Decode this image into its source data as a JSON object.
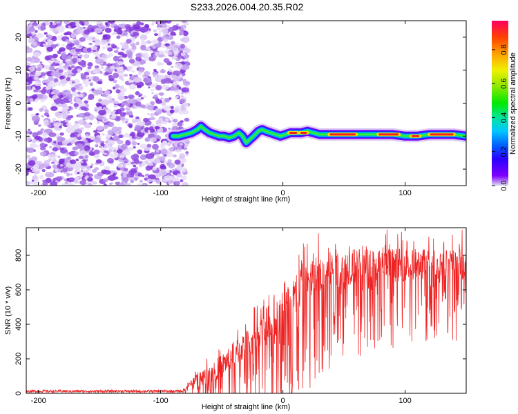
{
  "title": "S233.2026.004.20.35.R02",
  "colors": {
    "scatter": "#8a2be2",
    "snr_line": "#ee2222",
    "axis": "#000000",
    "colorbar": [
      "#dcdcf0",
      "#7f00ff",
      "#2a00ff",
      "#0066ff",
      "#00c8ff",
      "#00e5a0",
      "#00e800",
      "#8ce800",
      "#f0f000",
      "#ffa000",
      "#ff4000",
      "#ff0060",
      "#ff007f"
    ]
  },
  "chart_data": [
    {
      "type": "heatmap",
      "name": "spectrogram",
      "xlabel": "Height of straight line (km)",
      "ylabel": "Frequency (Hz)",
      "xlim": [
        -210,
        150
      ],
      "ylim": [
        -25,
        25
      ],
      "xticks": [
        -200,
        -100,
        0,
        100
      ],
      "yticks": [
        -20,
        -10,
        0,
        10,
        20
      ],
      "noise_region": {
        "x_range": [
          -210,
          -82
        ],
        "y_range": [
          -25,
          25
        ]
      },
      "track": {
        "x": [
          -90,
          -85,
          -80,
          -75,
          -70,
          -67,
          -64,
          -60,
          -56,
          -52,
          -48,
          -44,
          -40,
          -36,
          -33,
          -30,
          -27,
          -24,
          -20,
          -17,
          -14,
          -10,
          -6,
          -2,
          2,
          6,
          10,
          15,
          20,
          25,
          30,
          40,
          50,
          60,
          70,
          80,
          90,
          100,
          110,
          120,
          130,
          140,
          150
        ],
        "y": [
          -10,
          -10,
          -9.5,
          -9,
          -8,
          -7,
          -8,
          -9,
          -9.5,
          -10,
          -10,
          -10.5,
          -10,
          -9,
          -10,
          -12,
          -11,
          -10,
          -8.5,
          -8,
          -8.5,
          -9,
          -9.5,
          -10,
          -9.5,
          -9,
          -9,
          -9,
          -8.5,
          -9,
          -9.5,
          -9.5,
          -9.5,
          -9.5,
          -9.5,
          -9.5,
          -9.5,
          -10,
          -10,
          -9.5,
          -9.5,
          -9.5,
          -10
        ]
      },
      "hot_spots": [
        {
          "x_range": [
            5,
            12
          ],
          "y": -9
        },
        {
          "x_range": [
            14,
            20
          ],
          "y": -9
        },
        {
          "x_range": [
            38,
            60
          ],
          "y": -9.5
        },
        {
          "x_range": [
            78,
            95
          ],
          "y": -9.5
        },
        {
          "x_range": [
            105,
            112
          ],
          "y": -10
        },
        {
          "x_range": [
            120,
            140
          ],
          "y": -9.5
        }
      ],
      "colorbar": {
        "label": "Normalized spectral amplitude",
        "range": [
          0,
          0.97
        ],
        "ticks": [
          "0.0",
          "0.2",
          "0.4",
          "0.6",
          "0.8"
        ]
      }
    },
    {
      "type": "line",
      "name": "snr",
      "xlabel": "Height of straight line (km)",
      "ylabel": "SNR (10 * v/v)",
      "xlim": [
        -210,
        150
      ],
      "ylim": [
        0,
        960
      ],
      "xticks": [
        -200,
        -100,
        0,
        100
      ],
      "yticks": [
        0,
        200,
        400,
        600,
        800
      ],
      "envelope": {
        "x": [
          -210,
          -82,
          -75,
          -70,
          -60,
          -50,
          -40,
          -30,
          -20,
          -10,
          0,
          10,
          20,
          30,
          40,
          60,
          80,
          100,
          120,
          150
        ],
        "mean": [
          12,
          12,
          60,
          90,
          110,
          160,
          230,
          280,
          340,
          380,
          480,
          560,
          640,
          700,
          720,
          740,
          740,
          745,
          750,
          750
        ],
        "spread": [
          10,
          10,
          40,
          70,
          120,
          150,
          170,
          180,
          200,
          220,
          250,
          280,
          280,
          260,
          250,
          230,
          220,
          210,
          200,
          200
        ]
      }
    }
  ]
}
